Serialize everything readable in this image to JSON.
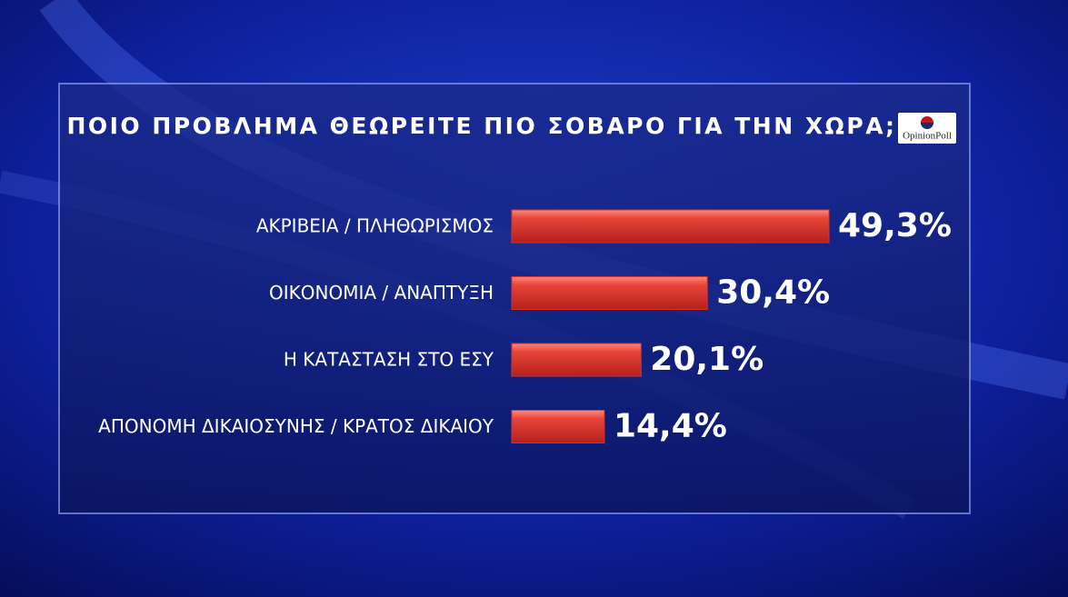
{
  "chart_data": {
    "type": "bar",
    "orientation": "horizontal",
    "title": "ΠΟΙΟ ΠΡΟΒΛΗΜΑ ΘΕΩΡΕΙΤΕ ΠΙΟ ΣΟΒΑΡΟ ΓΙΑ ΤΗΝ ΧΩΡΑ;",
    "logo": "OpinionPoll",
    "categories": [
      "ΑΚΡΙΒΕΙΑ / ΠΛΗΘΩΡΙΣΜΟΣ",
      "ΟΙΚΟΝΟΜΙΑ / ΑΝΑΠΤΥΞΗ",
      "Η ΚΑΤΑΣΤΑΣΗ ΣΤΟ ΕΣΥ",
      "ΑΠΟΝΟΜΗ ΔΙΚΑΙΟΣΥΝΗΣ / ΚΡΑΤΟΣ ΔΙΚΑΙΟΥ"
    ],
    "values": [
      49.3,
      30.4,
      20.1,
      14.4
    ],
    "value_labels": [
      "49,3%",
      "30,4%",
      "20,1%",
      "14,4%"
    ],
    "color": "#d9302c"
  }
}
